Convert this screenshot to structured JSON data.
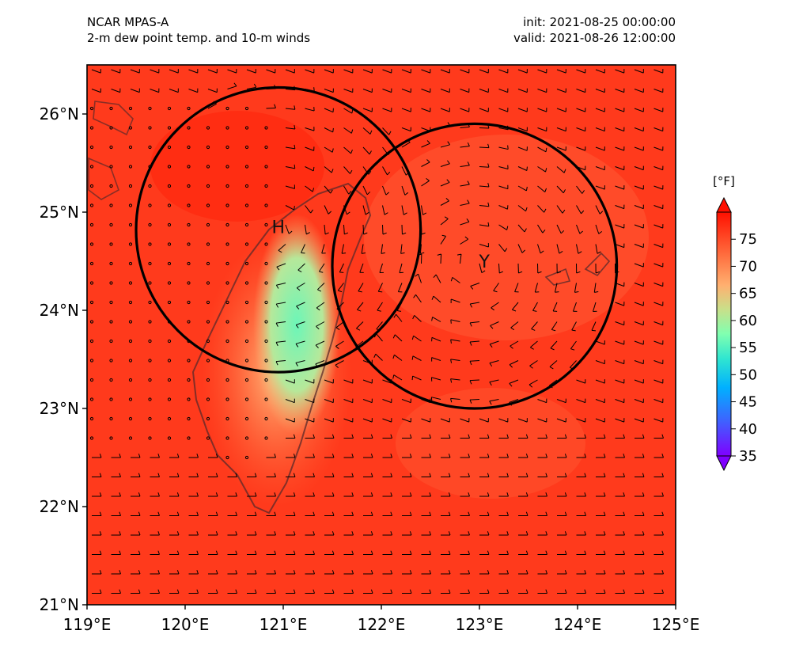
{
  "header": {
    "model": "NCAR MPAS-A",
    "product": "2-m dew point temp. and 10-m winds",
    "init": "init: 2021-08-25 00:00:00",
    "valid": "valid: 2021-08-26 12:00:00"
  },
  "axes": {
    "lon_ticks": [
      "119°E",
      "120°E",
      "121°E",
      "122°E",
      "123°E",
      "124°E",
      "125°E"
    ],
    "lat_ticks": [
      "21°N",
      "22°N",
      "23°N",
      "24°N",
      "25°N",
      "26°N"
    ],
    "lon_range": [
      119,
      125
    ],
    "lat_range": [
      21,
      26.5
    ]
  },
  "colorbar": {
    "unit": "[°F]",
    "ticks": [
      "35",
      "40",
      "45",
      "50",
      "55",
      "60",
      "65",
      "70",
      "75"
    ],
    "range": [
      35,
      80
    ],
    "colormap": "rainbow",
    "extend": "both"
  },
  "markers": [
    {
      "label": "H",
      "lon": 120.95,
      "lat": 24.85
    },
    {
      "label": "Y",
      "lon": 123.05,
      "lat": 24.5
    }
  ],
  "circles": [
    {
      "center_lon": 120.95,
      "center_lat": 24.82,
      "radius_deg": 1.45
    },
    {
      "center_lon": 122.95,
      "center_lat": 24.45,
      "radius_deg": 1.45
    }
  ],
  "colors": {
    "background_field": "#ff3a1c",
    "land_warm": "#ffa060",
    "land_cool": "#60f0b0",
    "circle": "#000000",
    "coast": "#5a2a2a"
  }
}
